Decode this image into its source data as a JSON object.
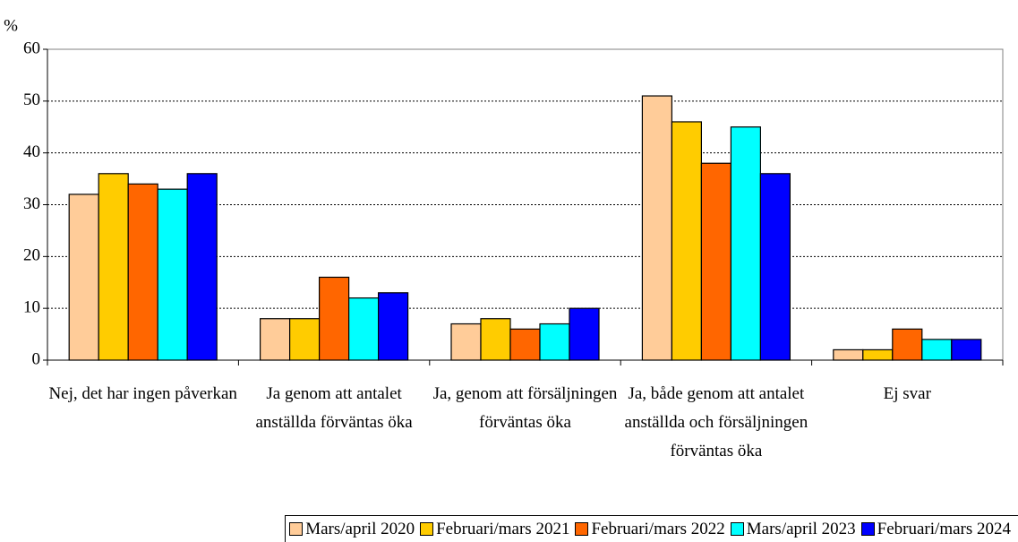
{
  "chart_data": {
    "type": "bar",
    "y_label": "%",
    "categories": [
      "Nej, det har ingen påverkan",
      "Ja genom att antalet anställda förväntas öka",
      "Ja, genom att försäljningen förväntas öka",
      "Ja, både genom att antalet anställda och försäljningen förväntas öka",
      "Ej svar"
    ],
    "series": [
      {
        "name": "Mars/april 2020",
        "color": "#FFCC99",
        "values": [
          32,
          8,
          7,
          51,
          2
        ]
      },
      {
        "name": "Februari/mars 2021",
        "color": "#FFCC00",
        "values": [
          36,
          8,
          8,
          46,
          2
        ]
      },
      {
        "name": "Februari/mars 2022",
        "color": "#FF6600",
        "values": [
          34,
          16,
          6,
          38,
          6
        ]
      },
      {
        "name": "Mars/april 2023",
        "color": "#00FFFF",
        "values": [
          33,
          12,
          7,
          45,
          4
        ]
      },
      {
        "name": "Februari/mars 2024",
        "color": "#0000FF",
        "values": [
          36,
          13,
          10,
          36,
          4
        ]
      }
    ],
    "ylim": [
      0,
      60
    ],
    "yticks": [
      0,
      10,
      20,
      30,
      40,
      50,
      60
    ],
    "grid": true,
    "legend": "bottom"
  }
}
